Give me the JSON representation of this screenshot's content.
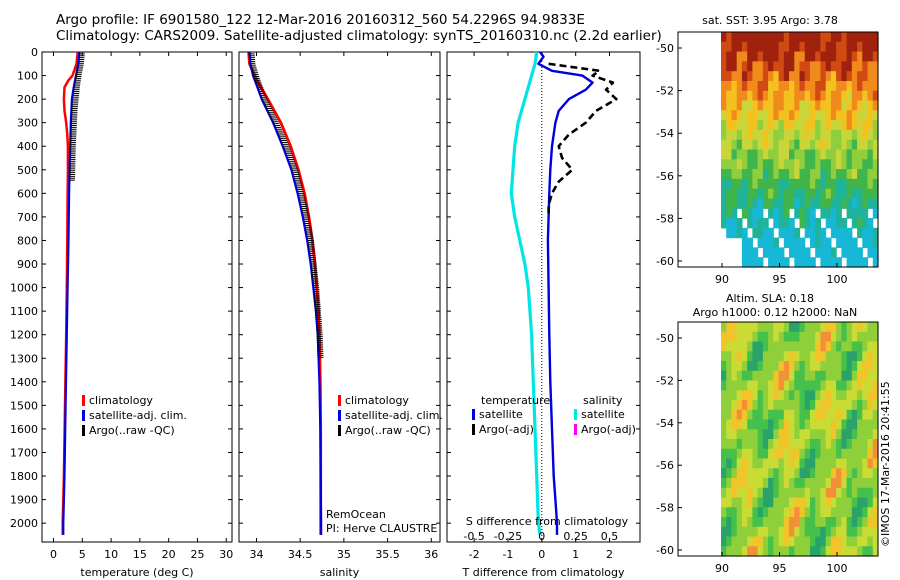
{
  "title": {
    "line1": "Argo profile: IF 6901580_122 12-Mar-2016 20160312_560 54.2296S 94.9833E",
    "line2": "Climatology: CARS2009. Satellite-adjusted climatology: synTS_20160310.nc (2.2d earlier)"
  },
  "depth_ticks": [
    "0",
    "100",
    "200",
    "300",
    "400",
    "500",
    "600",
    "700",
    "800",
    "900",
    "1000",
    "1100",
    "1200",
    "1300",
    "1400",
    "1500",
    "1600",
    "1700",
    "1800",
    "1900",
    "2000"
  ],
  "colors": {
    "climatology": "#ff0000",
    "satellite": "#0000dd",
    "argo": "#000000",
    "salinity_sat": "#00e5e5",
    "salinity_argo": "#ff00ff"
  },
  "chart_data": [
    {
      "type": "line",
      "name": "temperature-profile",
      "xlabel": "temperature (deg C)",
      "xlim": [
        -2,
        31
      ],
      "ylim": [
        2080,
        0
      ],
      "xticks": [
        "0",
        "5",
        "10",
        "15",
        "20",
        "25",
        "30"
      ],
      "xtick_values": [
        0,
        5,
        10,
        15,
        20,
        25,
        30
      ],
      "legend": [
        "climatology",
        "satellite-adj. clim.",
        "Argo(..raw -QC)"
      ],
      "series": [
        {
          "name": "climatology",
          "depth": [
            0,
            50,
            100,
            120,
            150,
            200,
            250,
            300,
            350,
            400,
            500,
            600,
            800,
            1000,
            1200,
            1500,
            1800,
            2000,
            2050
          ],
          "values": [
            4.2,
            4.0,
            3.3,
            2.6,
            1.9,
            1.8,
            1.9,
            2.2,
            2.4,
            2.5,
            2.5,
            2.45,
            2.4,
            2.3,
            2.2,
            2.0,
            1.8,
            1.6,
            1.6
          ]
        },
        {
          "name": "satellite-adj. clim.",
          "depth": [
            0,
            50,
            100,
            150,
            200,
            300,
            400,
            500,
            600,
            800,
            1000,
            1200,
            1500,
            1800,
            2000,
            2050
          ],
          "values": [
            4.5,
            4.3,
            3.9,
            3.5,
            3.2,
            3.0,
            2.9,
            2.8,
            2.7,
            2.6,
            2.45,
            2.3,
            2.1,
            1.9,
            1.7,
            1.7
          ]
        },
        {
          "name": "Argo(..raw -QC)",
          "depth": [
            0,
            50,
            100,
            150,
            200,
            250,
            300,
            350,
            400,
            450,
            500,
            550
          ],
          "values": [
            4.6,
            4.4,
            4.0,
            3.7,
            3.5,
            3.3,
            3.2,
            3.1,
            3.0,
            2.95,
            2.9,
            2.85
          ]
        }
      ]
    },
    {
      "type": "line",
      "name": "salinity-profile",
      "xlabel": "salinity",
      "xlim": [
        33.8,
        36.1
      ],
      "ylim": [
        2080,
        0
      ],
      "xticks": [
        "34",
        "34.5",
        "35",
        "35.5",
        "36"
      ],
      "xtick_values": [
        34,
        34.5,
        35,
        35.5,
        36
      ],
      "legend": [
        "climatology",
        "satellite-adj. clim.",
        "Argo(..raw -QC)"
      ],
      "annotation": [
        "RemOcean",
        "PI: Herve CLAUSTRE"
      ],
      "series": [
        {
          "name": "climatology",
          "depth": [
            0,
            50,
            100,
            150,
            200,
            300,
            400,
            500,
            600,
            700,
            800,
            900,
            1000,
            1100,
            1200,
            1400,
            1600,
            1800,
            2000,
            2050
          ],
          "values": [
            33.91,
            33.92,
            33.98,
            34.05,
            34.13,
            34.28,
            34.39,
            34.48,
            34.55,
            34.6,
            34.64,
            34.67,
            34.69,
            34.71,
            34.72,
            34.73,
            34.735,
            34.735,
            34.735,
            34.735
          ]
        },
        {
          "name": "satellite-adj. clim.",
          "depth": [
            0,
            50,
            100,
            150,
            200,
            300,
            400,
            500,
            600,
            700,
            800,
            900,
            1000,
            1100,
            1200,
            1400,
            1600,
            1800,
            2000,
            2050
          ],
          "values": [
            33.92,
            33.93,
            33.96,
            34.01,
            34.06,
            34.19,
            34.3,
            34.4,
            34.47,
            34.53,
            34.58,
            34.62,
            34.65,
            34.68,
            34.7,
            34.72,
            34.73,
            34.735,
            34.74,
            34.74
          ]
        },
        {
          "name": "Argo(..raw -QC)",
          "depth": [
            0,
            50,
            100,
            150,
            200,
            300,
            400,
            500,
            600,
            700,
            800,
            900,
            1000,
            1100,
            1200,
            1300
          ],
          "values": [
            33.92,
            33.93,
            33.97,
            34.02,
            34.07,
            34.2,
            34.32,
            34.42,
            34.49,
            34.55,
            34.6,
            34.63,
            34.66,
            34.68,
            34.7,
            34.71
          ]
        }
      ]
    },
    {
      "type": "line",
      "name": "difference-profile",
      "xlabel": "T difference from climatology",
      "xlabel2": "S difference from climatology",
      "xlim": [
        -2.8,
        2.9
      ],
      "ylim": [
        2080,
        0
      ],
      "xticks": [
        "-2",
        "-1",
        "0",
        "1",
        "2"
      ],
      "xtick_values": [
        -2,
        -1,
        0,
        1,
        2
      ],
      "sticks": [
        "-0.5",
        "-0.25",
        "0",
        "0.25",
        "0.5"
      ],
      "stick_values": [
        -2,
        -1,
        0,
        1,
        2
      ],
      "legend_headers": [
        "temperature",
        "salinity"
      ],
      "legend_left": [
        "satellite",
        "Argo(-adj)"
      ],
      "legend_right": [
        "satellite",
        "Argo(-adj)"
      ],
      "series": [
        {
          "name": "temperature satellite",
          "depth": [
            0,
            20,
            50,
            80,
            100,
            130,
            160,
            200,
            250,
            300,
            400,
            500,
            600,
            700,
            800,
            1000,
            1200,
            1400,
            1600,
            1800,
            1900,
            2000,
            2050
          ],
          "values": [
            -0.05,
            0.05,
            -0.1,
            0.3,
            1.2,
            1.5,
            1.3,
            0.8,
            0.5,
            0.4,
            0.3,
            0.25,
            0.22,
            0.2,
            0.18,
            0.2,
            0.22,
            0.25,
            0.3,
            0.35,
            0.4,
            0.45,
            0.45
          ]
        },
        {
          "name": "temperature Argo(-adj)",
          "depth": [
            50,
            80,
            100,
            130,
            160,
            200,
            250,
            300,
            350,
            400,
            450,
            500,
            550,
            600,
            650,
            700
          ],
          "values": [
            0.2,
            1.7,
            1.5,
            2.1,
            1.9,
            2.2,
            1.6,
            1.3,
            0.8,
            0.5,
            0.6,
            0.9,
            0.5,
            0.3,
            0.2,
            0.2
          ]
        },
        {
          "name": "salinity satellite",
          "depth": [
            0,
            50,
            100,
            150,
            200,
            300,
            400,
            500,
            600,
            700,
            800,
            900,
            1000,
            1200,
            1400,
            1600,
            1800,
            2000,
            2050
          ],
          "values": [
            -0.15,
            -0.2,
            -0.3,
            -0.4,
            -0.5,
            -0.7,
            -0.8,
            -0.85,
            -0.9,
            -0.8,
            -0.65,
            -0.5,
            -0.4,
            -0.3,
            -0.25,
            -0.2,
            -0.15,
            -0.1,
            -0.05
          ]
        }
      ]
    },
    {
      "type": "heatmap",
      "name": "sst-map",
      "title": "sat. SST: 3.95 Argo: 3.78",
      "xticks": [
        "90",
        "95",
        "100"
      ],
      "yticks": [
        "-50",
        "-52",
        "-54",
        "-56",
        "-58",
        "-60"
      ]
    },
    {
      "type": "heatmap",
      "name": "sla-map",
      "title": "Altim. SLA: 0.18",
      "subtitle": "Argo h1000: 0.12 h2000: NaN",
      "xticks": [
        "90",
        "95",
        "100"
      ],
      "yticks": [
        "-50",
        "-52",
        "-54",
        "-56",
        "-58",
        "-60"
      ]
    }
  ],
  "stamp": "©IMOS 17-Mar-2016 20:41:55"
}
